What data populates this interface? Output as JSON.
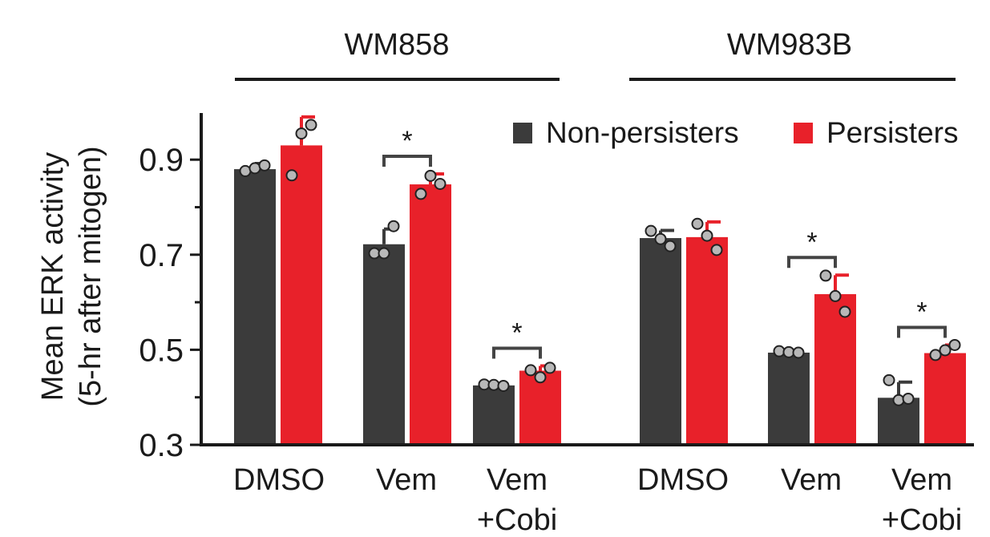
{
  "chart_data": {
    "type": "bar",
    "ylabel_line1": "Mean ERK activity",
    "ylabel_line2": "(5-hr after mitogen)",
    "ylim": [
      0.3,
      1.0
    ],
    "yticks": [
      0.3,
      0.5,
      0.7,
      0.9
    ],
    "ytick_labels": [
      "0.3",
      "0.5",
      "0.7",
      "0.9"
    ],
    "groups": [
      {
        "name": "WM858",
        "categories": [
          {
            "line1": "DMSO",
            "line2": "",
            "nonpersisters": 0.88,
            "nonpersisters_err": 0.012,
            "persisters": 0.93,
            "persisters_err": 0.06,
            "nonpersisters_points": [
              0.876,
              0.882,
              0.888
            ],
            "persisters_points": [
              0.867,
              0.955,
              0.973
            ],
            "sig": ""
          },
          {
            "line1": "Vem",
            "line2": "",
            "nonpersisters": 0.722,
            "nonpersisters_err": 0.032,
            "persisters": 0.848,
            "persisters_err": 0.022,
            "nonpersisters_points": [
              0.703,
              0.703,
              0.76
            ],
            "persisters_points": [
              0.828,
              0.866,
              0.849
            ],
            "sig": "*"
          },
          {
            "line1": "Vem",
            "line2": "+Cobi",
            "nonpersisters": 0.425,
            "nonpersisters_err": 0.004,
            "persisters": 0.456,
            "persisters_err": 0.01,
            "nonpersisters_points": [
              0.427,
              0.426,
              0.424
            ],
            "persisters_points": [
              0.457,
              0.442,
              0.462
            ],
            "sig": "*"
          }
        ]
      },
      {
        "name": "WM983B",
        "categories": [
          {
            "line1": "DMSO",
            "line2": "",
            "nonpersisters": 0.735,
            "nonpersisters_err": 0.016,
            "persisters": 0.737,
            "persisters_err": 0.032,
            "nonpersisters_points": [
              0.75,
              0.733,
              0.718
            ],
            "persisters_points": [
              0.765,
              0.74,
              0.71
            ],
            "sig": ""
          },
          {
            "line1": "Vem",
            "line2": "",
            "nonpersisters": 0.494,
            "nonpersisters_err": 0.003,
            "persisters": 0.617,
            "persisters_err": 0.04,
            "nonpersisters_points": [
              0.497,
              0.495,
              0.494
            ],
            "persisters_points": [
              0.656,
              0.613,
              0.58
            ],
            "sig": "*"
          },
          {
            "line1": "Vem",
            "line2": "+Cobi",
            "nonpersisters": 0.399,
            "nonpersisters_err": 0.033,
            "persisters": 0.493,
            "persisters_err": 0.017,
            "nonpersisters_points": [
              0.436,
              0.394,
              0.397
            ],
            "persisters_points": [
              0.489,
              0.499,
              0.51
            ],
            "sig": "*"
          }
        ]
      }
    ],
    "legend": [
      {
        "name": "Non-persisters",
        "color": "#3b3b3b"
      },
      {
        "name": "Persisters",
        "color": "#e8212a"
      }
    ]
  }
}
